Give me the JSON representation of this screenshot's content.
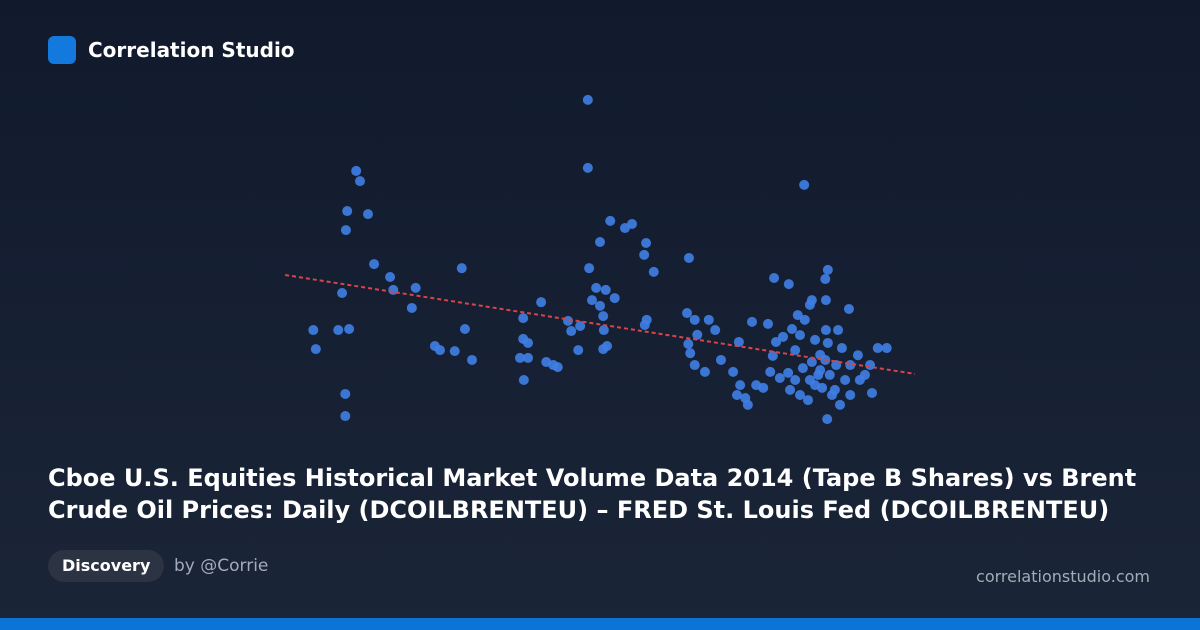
{
  "header": {
    "brand": "Correlation Studio"
  },
  "chart_data": {
    "type": "scatter",
    "title": "Cboe U.S. Equities Historical Market Volume Data 2014 (Tape B Shares) vs Brent Crude Oil Prices: Daily (DCOILBRENTEU) – FRED St. Louis Fed (DCOILBRENTEU)",
    "xlim": [
      0,
      100
    ],
    "ylim": [
      0,
      100
    ],
    "color": "#3f7fe6",
    "x": [
      48.1,
      48.1,
      11.9,
      12.5,
      10.5,
      13.75,
      10.3,
      14.7,
      17.2,
      17.7,
      21.2,
      9.7,
      28.4,
      20.6,
      5.2,
      5.6,
      9.1,
      10.8,
      10.2,
      10.2,
      24.2,
      25,
      27.3,
      30,
      28.9,
      40.8,
      38,
      38,
      38.75,
      37.5,
      38.75,
      38.1,
      41.6,
      42.7,
      43.4,
      45,
      45.5,
      46.9,
      46.6,
      48.3,
      49.4,
      50.9,
      48.75,
      50,
      51.6,
      53.9,
      55,
      52.3,
      50,
      50.5,
      50.6,
      51.1,
      50.5,
      57.2,
      56.9,
      58.4,
      57.3,
      57,
      63.9,
      63.6,
      64.8,
      65.2,
      63.8,
      64.1,
      64.8,
      66.4,
      67,
      68,
      68.9,
      70.8,
      71.7,
      73.75,
      76.25,
      77,
      77.2,
      79.5,
      81.9,
      85.6,
      85.2,
      88.9,
      71.9,
      72.7,
      73.1,
      71.4,
      74.4,
      75.5,
      78.1,
      79.7,
      81.25,
      82.5,
      83.6,
      84.4,
      85.2,
      85.9,
      86.7,
      87.5,
      85.5,
      88.3,
      89.1,
      90.3,
      91.4,
      92.5,
      93.4,
      94.8,
      92.2,
      80.5,
      81.25,
      82,
      82.8,
      80.9,
      83.6,
      84.4,
      83.1,
      84.1,
      85.6,
      87.2,
      87.8,
      79.4,
      80.5,
      81.7,
      84.7,
      86.25,
      86.9,
      78.6,
      80,
      77.5,
      90.6,
      89.1,
      76.6,
      82.8,
      85.3,
      83.1,
      85.3
    ],
    "y": [
      97.1,
      77.1,
      76.2,
      73.2,
      64.4,
      63.5,
      58.8,
      48.8,
      45,
      41.2,
      41.8,
      40.3,
      47.6,
      35.9,
      29.4,
      23.8,
      29.4,
      29.7,
      10.6,
      4.1,
      24.7,
      23.5,
      23.2,
      20.6,
      29.7,
      37.6,
      32.9,
      26.8,
      25.6,
      21.2,
      21.2,
      14.7,
      20,
      19.1,
      18.5,
      32.1,
      29.1,
      30.6,
      23.5,
      47.6,
      41.8,
      41.2,
      38.2,
      55.3,
      61.5,
      59.4,
      60.6,
      38.8,
      36.5,
      33.5,
      29.4,
      24.7,
      23.8,
      55,
      51.5,
      46.5,
      32.4,
      30.9,
      50.6,
      34.4,
      32.4,
      28,
      25.3,
      22.6,
      19.1,
      17.1,
      32.4,
      29.4,
      20.6,
      17.1,
      25.9,
      31.8,
      31.2,
      21.8,
      44.7,
      42.9,
      72.1,
      47.1,
      44.4,
      35.6,
      13.2,
      9.4,
      7.4,
      10.3,
      13.2,
      12.4,
      15.3,
      11.8,
      10.3,
      8.8,
      13.2,
      17.6,
      20.6,
      16.2,
      11.8,
      7.4,
      3.2,
      14.7,
      19.1,
      22,
      16.2,
      10.9,
      24.1,
      24.1,
      19.1,
      23.5,
      27.9,
      32.4,
      36.8,
      33.8,
      26.5,
      22.1,
      20,
      16.2,
      25.6,
      29.4,
      24.1,
      16.8,
      14.7,
      18.2,
      12.4,
      10.3,
      19.1,
      27.4,
      29.7,
      25.9,
      14.7,
      10.3,
      17.1,
      14.7,
      29.4,
      38.2,
      38.2
    ],
    "trendline": {
      "x": [
        0.8,
        99.2
      ],
      "y": [
        45.6,
        16.5
      ],
      "color": "#d9444a"
    }
  },
  "footer": {
    "tag": "Discovery",
    "author": "by @Corrie",
    "site": "correlationstudio.com"
  }
}
